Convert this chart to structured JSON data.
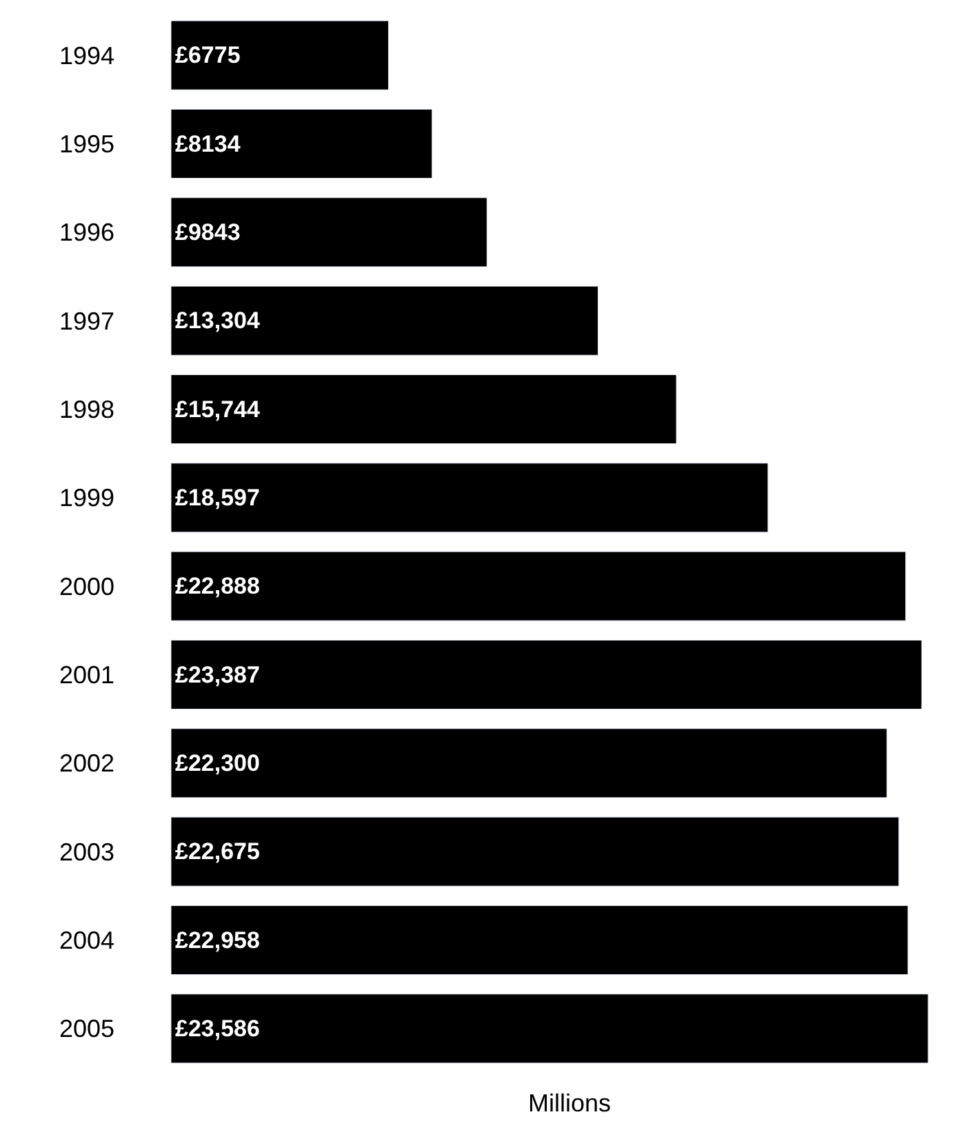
{
  "chart_data": {
    "type": "bar",
    "orientation": "horizontal",
    "xlabel": "Millions",
    "categories": [
      "1994",
      "1995",
      "1996",
      "1997",
      "1998",
      "1999",
      "2000",
      "2001",
      "2002",
      "2003",
      "2004",
      "2005"
    ],
    "values": [
      6775,
      8134,
      9843,
      13304,
      15744,
      18597,
      22888,
      23387,
      22300,
      22675,
      22958,
      23586
    ],
    "value_labels": [
      "£6775",
      "£8134",
      "£9843",
      "£13,304",
      "£15,744",
      "£18,597",
      "£22,888",
      "£23,387",
      "£22,300",
      "£22,675",
      "£22,958",
      "£23,586"
    ],
    "color": "#000000",
    "legend": false,
    "tick_labels": "y"
  }
}
